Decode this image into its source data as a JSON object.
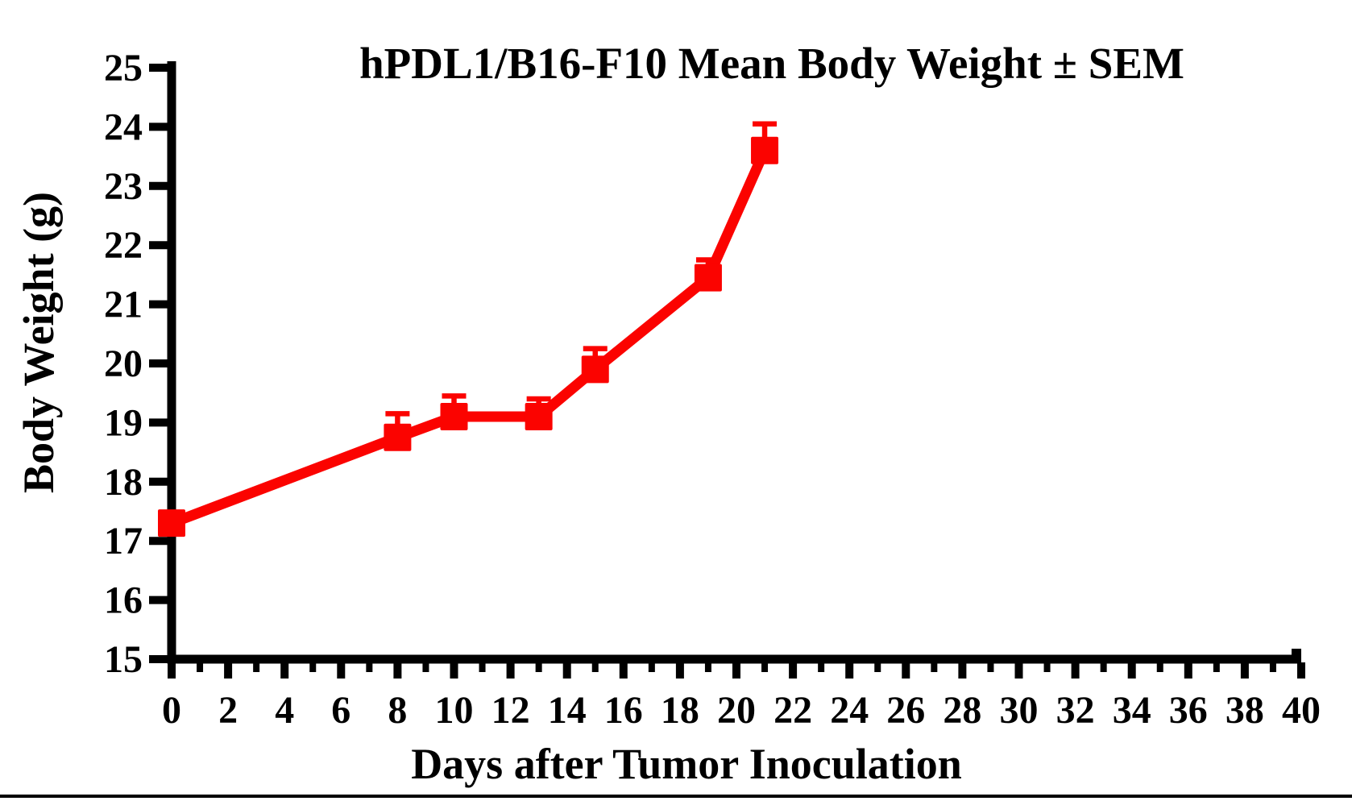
{
  "figure": {
    "background": "#ffffff",
    "footer_rule_color": "#000000"
  },
  "chart_data": {
    "type": "line",
    "title": "hPDL1/B16-F10 Mean Body Weight ± SEM",
    "xlabel": "Days after Tumor Inoculation",
    "ylabel": "Body Weight (g)",
    "series": [
      {
        "name": "hPDL1/B16-F10",
        "x": [
          0,
          8,
          10,
          13,
          15,
          19,
          21
        ],
        "mean": [
          17.3,
          18.75,
          19.1,
          19.1,
          19.9,
          21.45,
          23.6
        ],
        "sem_upper": [
          0,
          0.4,
          0.35,
          0.3,
          0.35,
          0.3,
          0.45
        ],
        "color": "#fb0300",
        "marker": "square",
        "error_bar_direction": "up"
      }
    ],
    "xlim": [
      0,
      40
    ],
    "ylim": [
      15,
      25
    ],
    "x_tick_labels": [
      "0",
      "2",
      "4",
      "6",
      "8",
      "10",
      "12",
      "14",
      "16",
      "18",
      "20",
      "22",
      "24",
      "26",
      "28",
      "30",
      "32",
      "34",
      "36",
      "38",
      "40"
    ],
    "x_minor_tick_step": 1,
    "y_tick_labels": [
      "15",
      "16",
      "17",
      "18",
      "19",
      "20",
      "21",
      "22",
      "23",
      "24",
      "25"
    ],
    "grid": false,
    "legend": false,
    "axis_color": "#000000"
  }
}
